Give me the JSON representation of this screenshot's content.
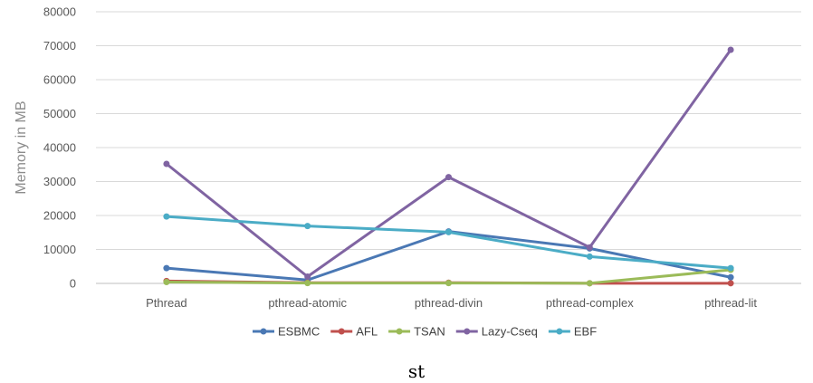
{
  "chart_data": {
    "type": "line",
    "title": "",
    "xlabel": "",
    "ylabel": "Memory in MB",
    "ylim": [
      0,
      80000
    ],
    "yticks": [
      0,
      10000,
      20000,
      30000,
      40000,
      50000,
      60000,
      70000,
      80000
    ],
    "grid": "horizontal",
    "legend_position": "bottom",
    "categories": [
      "Pthread",
      "pthread-atomic",
      "pthread-divin",
      "pthread-complex",
      "pthread-lit"
    ],
    "series": [
      {
        "name": "ESBMC",
        "color": "#4a78b4",
        "values": [
          4500,
          1000,
          15300,
          10300,
          1800
        ]
      },
      {
        "name": "AFL",
        "color": "#c0504d",
        "values": [
          700,
          200,
          200,
          50,
          50
        ]
      },
      {
        "name": "TSAN",
        "color": "#9bbb59",
        "values": [
          400,
          100,
          100,
          50,
          4000
        ]
      },
      {
        "name": "Lazy-Cseq",
        "color": "#8064a2",
        "values": [
          35200,
          2000,
          31300,
          10600,
          68800
        ]
      },
      {
        "name": "EBF",
        "color": "#4bacc6",
        "values": [
          19700,
          16900,
          15100,
          7900,
          4500
        ]
      }
    ]
  },
  "caption": "st"
}
